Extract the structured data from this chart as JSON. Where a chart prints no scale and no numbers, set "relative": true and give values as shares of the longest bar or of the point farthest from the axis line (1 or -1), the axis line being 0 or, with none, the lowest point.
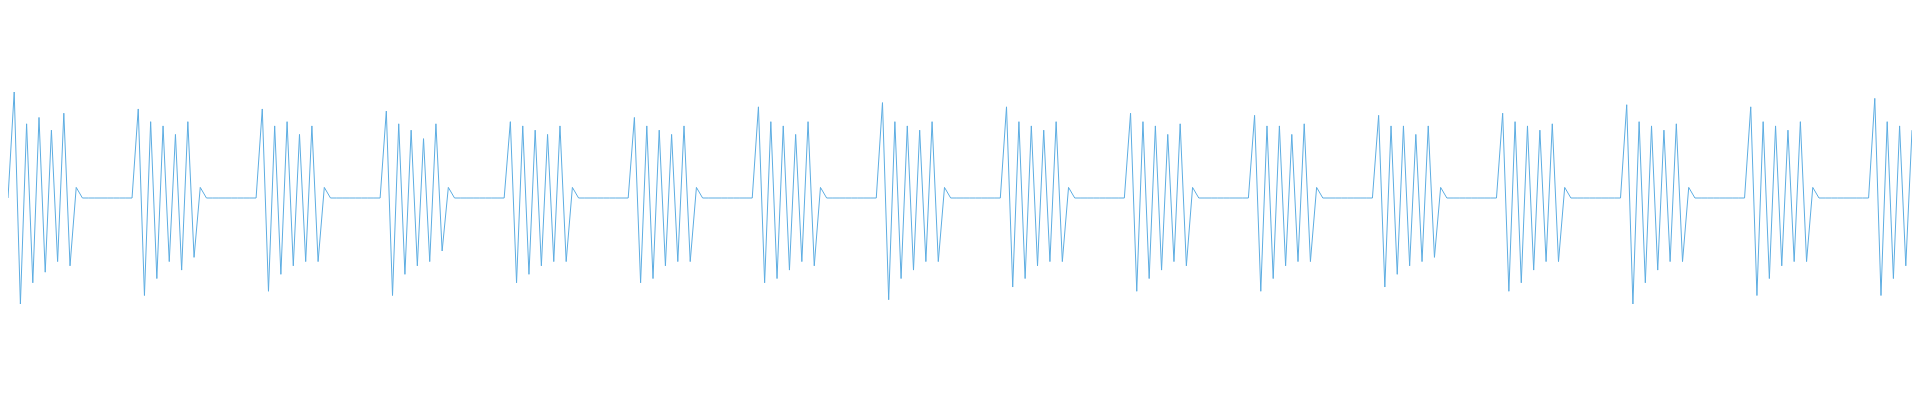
{
  "chart_data": {
    "type": "line",
    "relative": true,
    "categories": [
      null,
      null,
      null,
      null,
      null,
      null,
      null,
      null,
      null,
      null,
      null,
      null,
      null,
      null,
      null,
      null,
      null,
      null,
      null,
      null,
      null,
      null,
      null,
      null,
      null,
      null,
      null,
      null,
      null,
      null,
      null,
      null,
      null,
      null,
      null,
      null,
      null,
      null,
      null,
      null,
      null,
      null,
      null,
      null,
      null,
      null,
      null,
      null,
      null,
      null,
      null,
      null,
      null,
      null,
      null,
      null,
      null,
      null,
      null,
      null,
      null,
      null,
      null,
      null,
      null,
      null,
      null,
      null,
      null,
      null,
      null,
      null,
      null,
      null,
      null,
      null,
      null,
      null,
      null,
      null,
      null,
      null,
      null,
      null,
      null,
      null,
      null,
      null,
      null,
      null,
      null,
      null,
      null,
      null,
      null,
      null,
      null,
      null,
      null,
      null,
      null,
      null,
      null,
      null,
      null,
      null,
      null,
      null,
      null,
      null,
      null,
      null,
      null,
      null,
      null,
      null,
      null,
      null,
      null,
      null,
      null,
      null,
      null,
      null,
      null,
      null,
      null,
      null,
      null,
      null,
      null,
      null,
      null,
      null,
      null,
      null,
      null,
      null,
      null,
      null,
      null,
      null,
      null,
      null,
      null,
      null,
      null,
      null,
      null,
      null,
      null,
      null,
      null,
      null,
      null,
      null,
      null,
      null,
      null,
      null,
      null,
      null,
      null,
      null,
      null,
      null,
      null,
      null,
      null,
      null,
      null,
      null,
      null,
      null,
      null,
      null,
      null,
      null,
      null,
      null,
      null,
      null,
      null,
      null,
      null,
      null,
      null,
      null,
      null,
      null,
      null,
      null,
      null,
      null,
      null,
      null,
      null,
      null,
      null,
      null,
      null,
      null,
      null,
      null,
      null,
      null,
      null,
      null,
      null,
      null,
      null,
      null,
      null,
      null,
      null,
      null,
      null,
      null,
      null,
      null,
      null,
      null,
      null,
      null,
      null,
      null,
      null,
      null,
      null,
      null,
      null,
      null,
      null,
      null,
      null,
      null,
      null,
      null,
      null,
      null,
      null,
      null,
      null,
      null,
      null,
      null,
      null,
      null,
      null,
      null,
      null,
      null,
      null,
      null,
      null,
      null,
      null,
      null,
      null,
      null,
      null,
      null,
      null,
      null,
      null,
      null,
      null,
      null,
      null,
      null,
      null,
      null,
      null,
      null,
      null,
      null,
      null,
      null,
      null,
      null,
      null,
      null,
      null,
      null,
      null,
      null,
      null,
      null,
      null,
      null,
      null,
      null,
      null,
      null,
      null,
      null,
      null,
      null,
      null,
      null,
      null,
      null,
      null,
      null,
      null,
      null,
      null,
      null
    ],
    "series": [
      {
        "color": "#5dade2",
        "values": [
          0.5,
          1.0,
          0.0,
          0.85,
          0.1,
          0.88,
          0.15,
          0.82,
          0.2,
          0.9,
          0.18,
          0.55,
          0.5,
          0.5,
          0.5,
          0.5,
          0.5,
          0.5,
          0.5,
          0.5,
          0.5,
          0.92,
          0.04,
          0.86,
          0.12,
          0.84,
          0.2,
          0.8,
          0.16,
          0.86,
          0.22,
          0.55,
          0.5,
          0.5,
          0.5,
          0.5,
          0.5,
          0.5,
          0.5,
          0.5,
          0.5,
          0.92,
          0.06,
          0.84,
          0.14,
          0.86,
          0.18,
          0.8,
          0.2,
          0.84,
          0.2,
          0.55,
          0.5,
          0.5,
          0.5,
          0.5,
          0.5,
          0.5,
          0.5,
          0.5,
          0.5,
          0.91,
          0.04,
          0.85,
          0.14,
          0.82,
          0.18,
          0.78,
          0.2,
          0.85,
          0.25,
          0.55,
          0.5,
          0.5,
          0.5,
          0.5,
          0.5,
          0.5,
          0.5,
          0.5,
          0.5,
          0.86,
          0.1,
          0.84,
          0.14,
          0.82,
          0.18,
          0.8,
          0.2,
          0.84,
          0.2,
          0.55,
          0.5,
          0.5,
          0.5,
          0.5,
          0.5,
          0.5,
          0.5,
          0.5,
          0.5,
          0.88,
          0.1,
          0.84,
          0.12,
          0.82,
          0.18,
          0.8,
          0.2,
          0.84,
          0.2,
          0.55,
          0.5,
          0.5,
          0.5,
          0.5,
          0.5,
          0.5,
          0.5,
          0.5,
          0.5,
          0.93,
          0.1,
          0.86,
          0.12,
          0.84,
          0.16,
          0.8,
          0.2,
          0.86,
          0.18,
          0.55,
          0.5,
          0.5,
          0.5,
          0.5,
          0.5,
          0.5,
          0.5,
          0.5,
          0.5,
          0.95,
          0.02,
          0.86,
          0.12,
          0.84,
          0.16,
          0.82,
          0.2,
          0.86,
          0.2,
          0.55,
          0.5,
          0.5,
          0.5,
          0.5,
          0.5,
          0.5,
          0.5,
          0.5,
          0.5,
          0.93,
          0.08,
          0.86,
          0.12,
          0.84,
          0.18,
          0.82,
          0.2,
          0.86,
          0.2,
          0.55,
          0.5,
          0.5,
          0.5,
          0.5,
          0.5,
          0.5,
          0.5,
          0.5,
          0.5,
          0.9,
          0.06,
          0.86,
          0.12,
          0.84,
          0.16,
          0.8,
          0.2,
          0.85,
          0.18,
          0.55,
          0.5,
          0.5,
          0.5,
          0.5,
          0.5,
          0.5,
          0.5,
          0.5,
          0.5,
          0.89,
          0.06,
          0.84,
          0.12,
          0.84,
          0.18,
          0.8,
          0.2,
          0.85,
          0.2,
          0.55,
          0.5,
          0.5,
          0.5,
          0.5,
          0.5,
          0.5,
          0.5,
          0.5,
          0.5,
          0.89,
          0.08,
          0.84,
          0.14,
          0.84,
          0.18,
          0.8,
          0.2,
          0.84,
          0.22,
          0.55,
          0.5,
          0.5,
          0.5,
          0.5,
          0.5,
          0.5,
          0.5,
          0.5,
          0.5,
          0.9,
          0.06,
          0.86,
          0.1,
          0.84,
          0.16,
          0.82,
          0.2,
          0.85,
          0.2,
          0.55,
          0.5,
          0.5,
          0.5,
          0.5,
          0.5,
          0.5,
          0.5,
          0.5,
          0.5,
          0.94,
          0.0,
          0.86,
          0.1,
          0.84,
          0.16,
          0.82,
          0.2,
          0.85,
          0.2,
          0.55,
          0.5,
          0.5,
          0.5,
          0.5,
          0.5,
          0.5,
          0.5,
          0.5,
          0.5,
          0.93,
          0.04,
          0.86,
          0.12,
          0.84,
          0.18,
          0.82,
          0.2,
          0.86,
          0.2,
          0.55,
          0.5,
          0.5,
          0.5,
          0.5,
          0.5,
          0.5,
          0.5,
          0.5,
          0.5,
          0.97,
          0.04,
          0.86,
          0.12,
          0.84,
          0.18,
          0.82
        ]
      }
    ]
  }
}
